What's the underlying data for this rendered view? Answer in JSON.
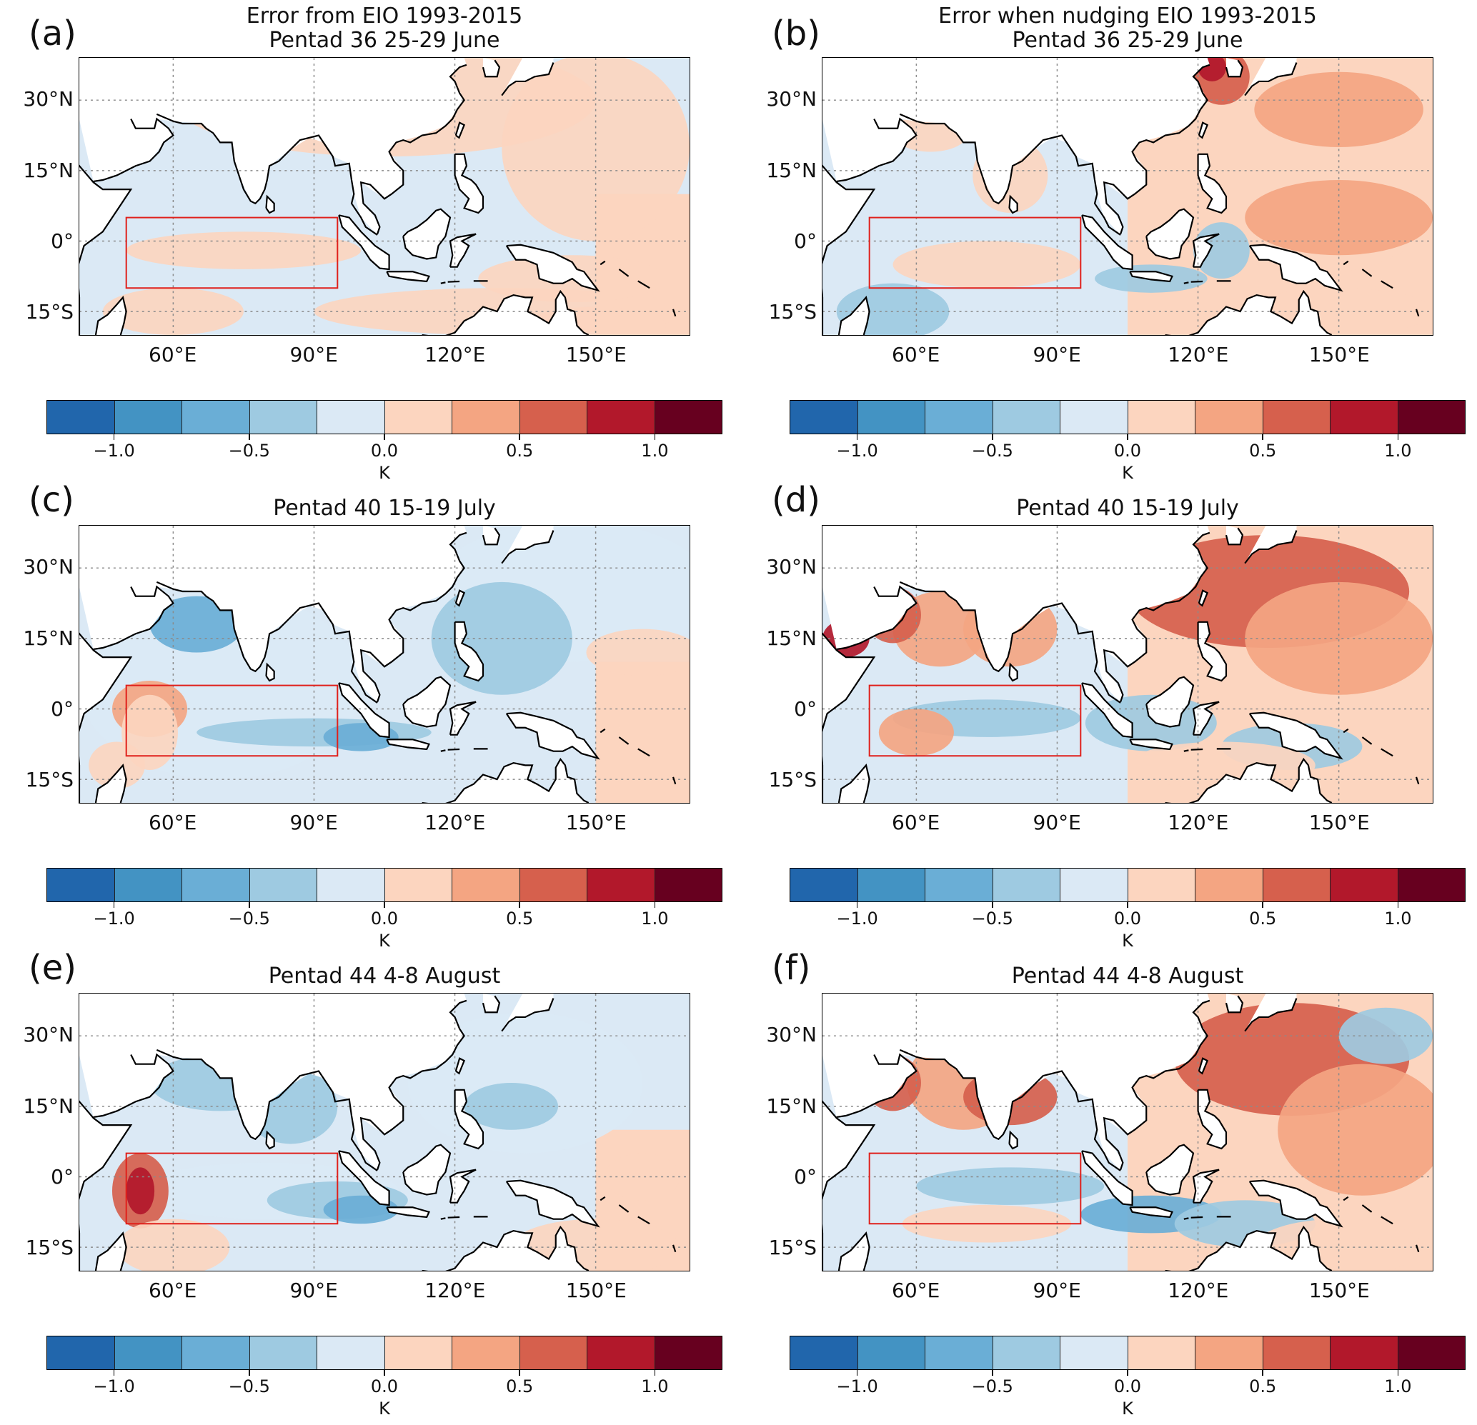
{
  "colorbar": {
    "colors": [
      "#2166ac",
      "#4393c3",
      "#6aaed6",
      "#9ecae1",
      "#dbe9f5",
      "#fcd5bf",
      "#f4a582",
      "#d6604d",
      "#b2182b",
      "#67001f"
    ],
    "ticks": [
      "−1.0",
      "−0.5",
      "0.0",
      "0.5",
      "1.0"
    ],
    "unit": "K"
  },
  "axes": {
    "lat_labels": [
      "30°N",
      "15°N",
      "0°",
      "15°S"
    ],
    "lon_labels": [
      "60°E",
      "90°E",
      "120°E",
      "150°E"
    ],
    "lon_range": [
      40,
      170
    ],
    "lat_range": [
      -20,
      39
    ]
  },
  "box_region": {
    "lon": [
      50,
      95
    ],
    "lat": [
      -10,
      5
    ],
    "color": "#e0201b"
  },
  "panels": [
    {
      "letter": "(a)",
      "title1": "Error from EIO 1993-2015",
      "title2": "Pentad 36 25-29 June",
      "dominant": "neutral"
    },
    {
      "letter": "(b)",
      "title1": "Error when nudging EIO 1993-2015",
      "title2": "Pentad 36 25-29 June",
      "dominant": "warm-west-pacific"
    },
    {
      "letter": "(c)",
      "title1": "Pentad 40 15-19 July",
      "title2": "",
      "dominant": "cool"
    },
    {
      "letter": "(d)",
      "title1": "Pentad 40 15-19 July",
      "title2": "",
      "dominant": "warm"
    },
    {
      "letter": "(e)",
      "title1": "Pentad 44 4-8 August",
      "title2": "",
      "dominant": "cool"
    },
    {
      "letter": "(f)",
      "title1": "Pentad 44 4-8 August",
      "title2": "",
      "dominant": "warm"
    }
  ]
}
